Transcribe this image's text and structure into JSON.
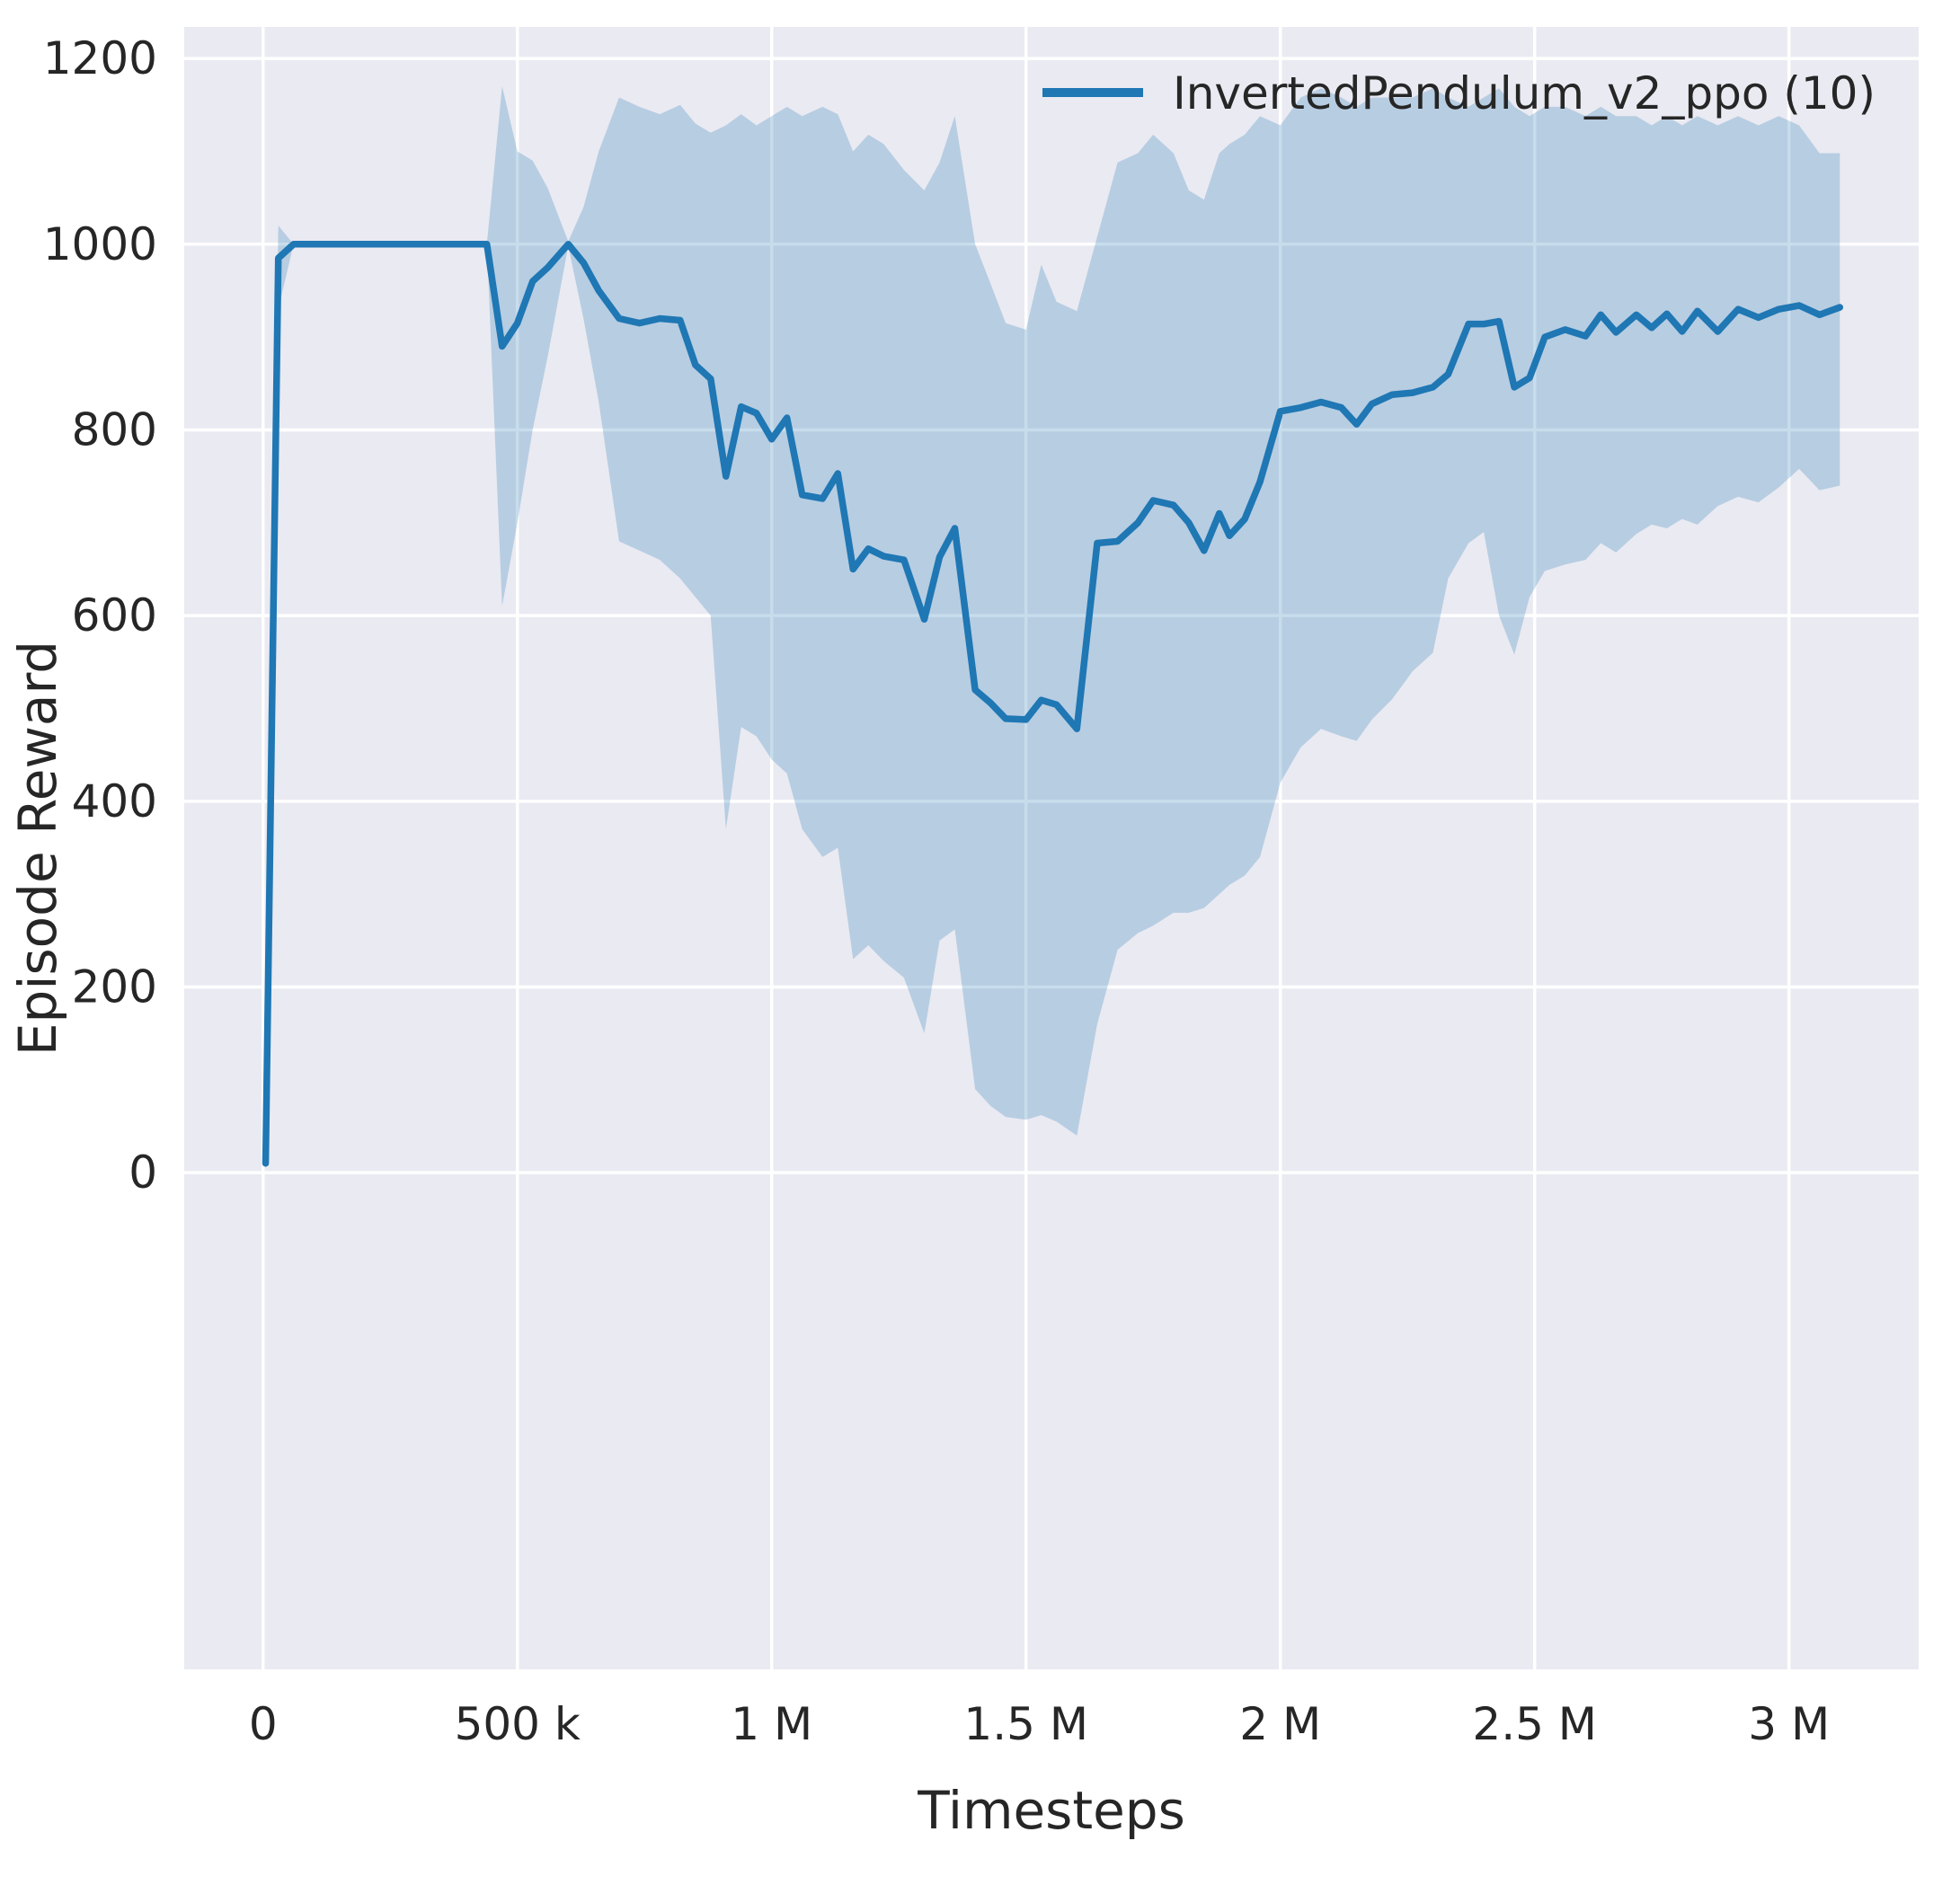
{
  "figure": {
    "background": "#ffffff",
    "axes_background": "#eaeaf2",
    "grid_color": "#ffffff",
    "tick_color": "#262626"
  },
  "chart_data": {
    "type": "line",
    "title": "",
    "xlabel": "Timesteps",
    "ylabel": "Episode Reward",
    "grid": true,
    "legend_position": "upper right",
    "xlim": [
      -155000,
      3255000
    ],
    "ylim": [
      -535,
      1234
    ],
    "x_ticks": [
      {
        "v": 0,
        "label": "0"
      },
      {
        "v": 500000,
        "label": "500 k"
      },
      {
        "v": 1000000,
        "label": "1 M"
      },
      {
        "v": 1500000,
        "label": "1.5 M"
      },
      {
        "v": 2000000,
        "label": "2 M"
      },
      {
        "v": 2500000,
        "label": "2.5 M"
      },
      {
        "v": 3000000,
        "label": "3 M"
      }
    ],
    "y_ticks": [
      {
        "v": 0,
        "label": "0"
      },
      {
        "v": 200,
        "label": "200"
      },
      {
        "v": 400,
        "label": "400"
      },
      {
        "v": 600,
        "label": "600"
      },
      {
        "v": 800,
        "label": "800"
      },
      {
        "v": 1000,
        "label": "1000"
      },
      {
        "v": 1200,
        "label": "1200"
      }
    ],
    "series": [
      {
        "name": "InvertedPendulum_v2_ppo (10)",
        "color": "#1f77b4",
        "band_opacity": 0.25,
        "line_width": 7.5,
        "x": [
          5000,
          30000,
          60000,
          100000,
          150000,
          200000,
          250000,
          300000,
          350000,
          400000,
          440000,
          470000,
          500000,
          530000,
          560000,
          600000,
          630000,
          660000,
          700000,
          740000,
          780000,
          820000,
          850000,
          880000,
          910000,
          940000,
          970000,
          1000000,
          1030000,
          1060000,
          1100000,
          1130000,
          1160000,
          1190000,
          1220000,
          1260000,
          1300000,
          1330000,
          1360000,
          1400000,
          1430000,
          1460000,
          1500000,
          1530000,
          1560000,
          1600000,
          1640000,
          1680000,
          1720000,
          1750000,
          1790000,
          1820000,
          1850000,
          1880000,
          1900000,
          1930000,
          1960000,
          2000000,
          2040000,
          2080000,
          2120000,
          2150000,
          2180000,
          2220000,
          2260000,
          2300000,
          2330000,
          2370000,
          2400000,
          2430000,
          2460000,
          2490000,
          2520000,
          2560000,
          2600000,
          2630000,
          2660000,
          2700000,
          2730000,
          2760000,
          2790000,
          2820000,
          2860000,
          2900000,
          2940000,
          2980000,
          3020000,
          3060000,
          3100000
        ],
        "mean": [
          10,
          985,
          1000,
          1000,
          1000,
          1000,
          1000,
          1000,
          1000,
          1000,
          1000,
          890,
          915,
          960,
          975,
          1000,
          980,
          950,
          920,
          915,
          920,
          918,
          870,
          855,
          750,
          825,
          818,
          790,
          813,
          730,
          726,
          753,
          650,
          672,
          664,
          660,
          596,
          663,
          694,
          520,
          506,
          489,
          488,
          509,
          504,
          478,
          678,
          680,
          700,
          724,
          719,
          700,
          670,
          710,
          686,
          704,
          744,
          820,
          824,
          830,
          824,
          806,
          828,
          838,
          840,
          846,
          860,
          914,
          914,
          917,
          846,
          856,
          900,
          908,
          901,
          924,
          905,
          924,
          910,
          925,
          906,
          928,
          906,
          930,
          921,
          930,
          934,
          924,
          932
        ],
        "lower": [
          5,
          930,
          1000,
          1000,
          1000,
          1000,
          1000,
          1000,
          1000,
          1000,
          1000,
          610,
          700,
          800,
          880,
          998,
          920,
          830,
          680,
          670,
          660,
          640,
          620,
          600,
          370,
          480,
          470,
          445,
          430,
          370,
          340,
          350,
          230,
          245,
          228,
          210,
          150,
          250,
          262,
          90,
          72,
          60,
          57,
          62,
          55,
          40,
          160,
          240,
          258,
          266,
          280,
          280,
          285,
          300,
          310,
          320,
          340,
          420,
          458,
          478,
          470,
          465,
          488,
          510,
          540,
          560,
          640,
          678,
          690,
          600,
          558,
          620,
          648,
          655,
          660,
          678,
          668,
          688,
          698,
          694,
          704,
          698,
          718,
          728,
          722,
          738,
          758,
          735,
          740
        ],
        "upper": [
          15,
          1020,
          1000,
          1000,
          1000,
          1000,
          1000,
          1000,
          1000,
          1000,
          1000,
          1170,
          1100,
          1090,
          1060,
          1003,
          1040,
          1100,
          1158,
          1148,
          1140,
          1150,
          1130,
          1120,
          1128,
          1140,
          1128,
          1138,
          1148,
          1138,
          1148,
          1140,
          1100,
          1118,
          1108,
          1080,
          1058,
          1088,
          1138,
          1000,
          958,
          915,
          908,
          978,
          938,
          928,
          1008,
          1088,
          1098,
          1118,
          1098,
          1058,
          1048,
          1098,
          1108,
          1118,
          1138,
          1128,
          1158,
          1168,
          1158,
          1148,
          1158,
          1158,
          1158,
          1168,
          1158,
          1148,
          1158,
          1168,
          1148,
          1138,
          1148,
          1148,
          1138,
          1148,
          1138,
          1138,
          1128,
          1138,
          1128,
          1138,
          1128,
          1138,
          1128,
          1138,
          1128,
          1098,
          1098
        ]
      }
    ]
  }
}
